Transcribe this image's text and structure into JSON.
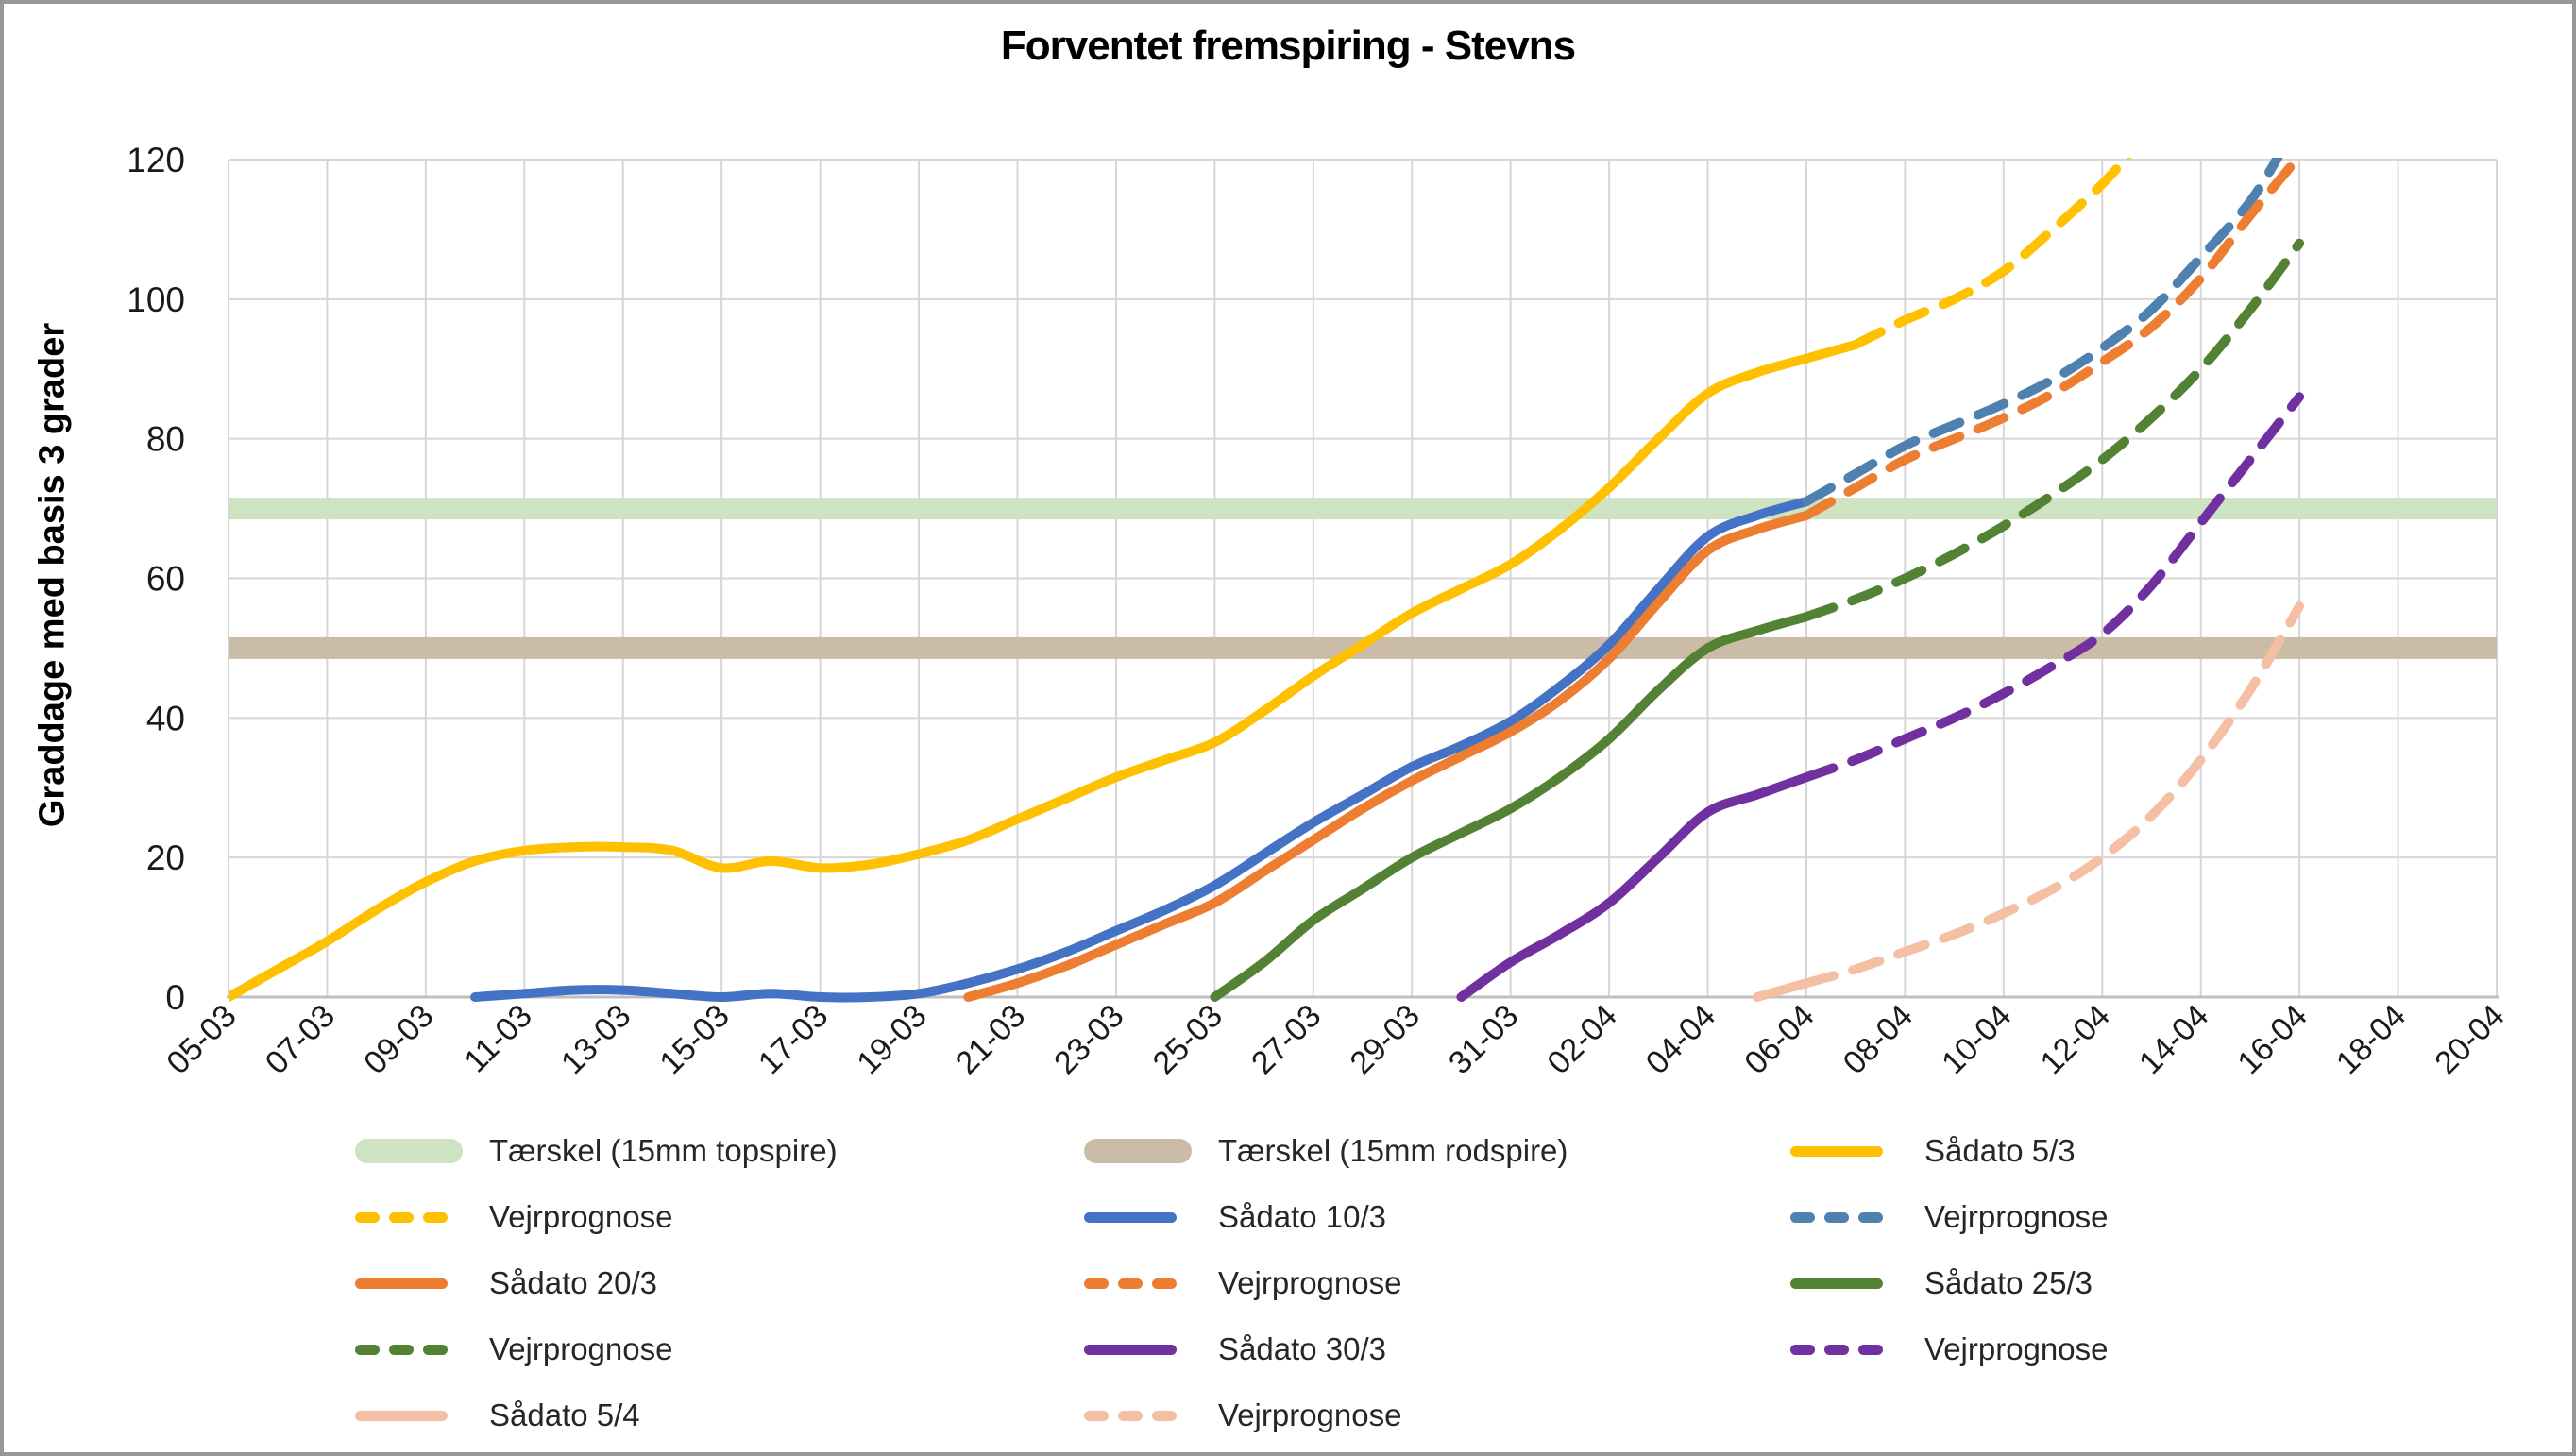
{
  "title": "Forventet fremspiring - Stevns",
  "chart_data": {
    "type": "line",
    "title": "Forventet fremspiring - Stevns",
    "xlabel": "",
    "ylabel": "Graddage med basis 3 grader",
    "ylim": [
      0,
      120
    ],
    "yticks": [
      0,
      20,
      40,
      60,
      80,
      100,
      120
    ],
    "grid": true,
    "legend_position": "bottom",
    "x_total_days": 46,
    "days_per_tick": 2,
    "x_note": "day 0 = 05-03, one vertical gridline per 2 days",
    "xtick_labels": [
      "05-03",
      "07-03",
      "09-03",
      "11-03",
      "13-03",
      "15-03",
      "17-03",
      "19-03",
      "21-03",
      "23-03",
      "25-03",
      "27-03",
      "29-03",
      "31-03",
      "02-04",
      "04-04",
      "06-04",
      "08-04",
      "10-04",
      "12-04",
      "14-04",
      "16-04",
      "18-04",
      "20-04"
    ],
    "thresholds": [
      {
        "name": "Tærskel (15mm topspire)",
        "value": 70,
        "color": "#CEE3C1"
      },
      {
        "name": "Tærskel (15mm rodspire)",
        "value": 50,
        "color": "#CBBCA7"
      }
    ],
    "series": [
      {
        "name": "Sådato 5/3",
        "group": "5/3",
        "style": "solid",
        "color": "#FFC000",
        "points": [
          [
            0,
            0
          ],
          [
            1,
            4
          ],
          [
            2,
            8
          ],
          [
            3,
            12.5
          ],
          [
            4,
            16.5
          ],
          [
            5,
            19.5
          ],
          [
            6,
            21
          ],
          [
            7,
            21.5
          ],
          [
            8,
            21.5
          ],
          [
            9,
            21
          ],
          [
            10,
            18.5
          ],
          [
            11,
            19.5
          ],
          [
            12,
            18.5
          ],
          [
            13,
            19
          ],
          [
            14,
            20.5
          ],
          [
            15,
            22.5
          ],
          [
            16,
            25.5
          ],
          [
            17,
            28.5
          ],
          [
            18,
            31.5
          ],
          [
            19,
            34
          ],
          [
            20,
            36.5
          ],
          [
            21,
            41
          ],
          [
            22,
            46
          ],
          [
            23,
            50.5
          ],
          [
            24,
            55
          ],
          [
            25,
            58.5
          ],
          [
            26,
            62
          ],
          [
            27,
            67
          ],
          [
            28,
            73
          ],
          [
            29,
            80
          ],
          [
            30,
            86.5
          ],
          [
            31,
            89.5
          ],
          [
            32,
            91.5
          ],
          [
            33,
            93.5
          ]
        ]
      },
      {
        "name": "Vejrprognose",
        "group": "5/3",
        "style": "dashed",
        "color": "#FFC000",
        "points": [
          [
            33,
            93.5
          ],
          [
            34,
            97
          ],
          [
            35,
            100
          ],
          [
            36,
            104
          ],
          [
            37,
            110
          ],
          [
            38,
            116.5
          ],
          [
            38.7,
            122
          ]
        ]
      },
      {
        "name": "Sådato 10/3",
        "group": "10/3",
        "style": "solid",
        "color": "#4472C4",
        "points": [
          [
            5,
            0
          ],
          [
            6,
            0.5
          ],
          [
            7,
            1
          ],
          [
            8,
            1
          ],
          [
            9,
            0.5
          ],
          [
            10,
            0
          ],
          [
            11,
            0.5
          ],
          [
            12,
            0
          ],
          [
            13,
            0
          ],
          [
            14,
            0.5
          ],
          [
            15,
            2
          ],
          [
            16,
            4
          ],
          [
            17,
            6.5
          ],
          [
            18,
            9.5
          ],
          [
            19,
            12.5
          ],
          [
            20,
            16
          ],
          [
            21,
            20.5
          ],
          [
            22,
            25
          ],
          [
            23,
            29
          ],
          [
            24,
            33
          ],
          [
            25,
            36
          ],
          [
            26,
            39.5
          ],
          [
            27,
            44.5
          ],
          [
            28,
            50.5
          ],
          [
            29,
            58.5
          ],
          [
            30,
            66
          ],
          [
            31,
            69
          ],
          [
            32,
            71
          ]
        ]
      },
      {
        "name": "Vejrprognose",
        "group": "10/3",
        "style": "dashed",
        "color": "#4F81B0",
        "points": [
          [
            32,
            71
          ],
          [
            33,
            75
          ],
          [
            34,
            79
          ],
          [
            35,
            82
          ],
          [
            36,
            85
          ],
          [
            37,
            88.5
          ],
          [
            38,
            93
          ],
          [
            39,
            98.5
          ],
          [
            40,
            106
          ],
          [
            41,
            114
          ],
          [
            41.7,
            122
          ]
        ]
      },
      {
        "name": "Sådato 20/3",
        "group": "20/3",
        "style": "solid",
        "color": "#ED7D31",
        "points": [
          [
            15,
            0
          ],
          [
            16,
            2
          ],
          [
            17,
            4.5
          ],
          [
            18,
            7.5
          ],
          [
            19,
            10.5
          ],
          [
            20,
            13.5
          ],
          [
            21,
            18
          ],
          [
            22,
            22.5
          ],
          [
            23,
            27
          ],
          [
            24,
            31
          ],
          [
            25,
            34.5
          ],
          [
            26,
            38
          ],
          [
            27,
            42.5
          ],
          [
            28,
            48.5
          ],
          [
            29,
            56.5
          ],
          [
            30,
            64
          ],
          [
            31,
            67
          ],
          [
            32,
            69
          ]
        ]
      },
      {
        "name": "Vejrprognose",
        "group": "20/3",
        "style": "dashed",
        "color": "#ED7D31",
        "points": [
          [
            32,
            69
          ],
          [
            33,
            73
          ],
          [
            34,
            77
          ],
          [
            35,
            80
          ],
          [
            36,
            83
          ],
          [
            37,
            86.5
          ],
          [
            38,
            91
          ],
          [
            39,
            96
          ],
          [
            40,
            103
          ],
          [
            41,
            112
          ],
          [
            42,
            120.5
          ]
        ]
      },
      {
        "name": "Sådato 25/3",
        "group": "25/3",
        "style": "solid",
        "color": "#548235",
        "points": [
          [
            20,
            0
          ],
          [
            21,
            5
          ],
          [
            22,
            11
          ],
          [
            23,
            15.5
          ],
          [
            24,
            20
          ],
          [
            25,
            23.5
          ],
          [
            26,
            27
          ],
          [
            27,
            31.5
          ],
          [
            28,
            37
          ],
          [
            29,
            44
          ],
          [
            30,
            50
          ],
          [
            31,
            52.5
          ],
          [
            32,
            54.5
          ]
        ]
      },
      {
        "name": "Vejrprognose",
        "group": "25/3",
        "style": "dashed",
        "color": "#548235",
        "points": [
          [
            32,
            54.5
          ],
          [
            33,
            57
          ],
          [
            34,
            60
          ],
          [
            35,
            63.5
          ],
          [
            36,
            67.5
          ],
          [
            37,
            72
          ],
          [
            38,
            77
          ],
          [
            39,
            83
          ],
          [
            40,
            90
          ],
          [
            41,
            98.5
          ],
          [
            42,
            108
          ]
        ]
      },
      {
        "name": "Sådato 30/3",
        "group": "30/3",
        "style": "solid",
        "color": "#7030A0",
        "points": [
          [
            25,
            0
          ],
          [
            26,
            5
          ],
          [
            27,
            9
          ],
          [
            28,
            13.5
          ],
          [
            29,
            20
          ],
          [
            30,
            26.5
          ],
          [
            31,
            29
          ],
          [
            32,
            31.5
          ]
        ]
      },
      {
        "name": "Vejrprognose",
        "group": "30/3",
        "style": "dashed",
        "color": "#7030A0",
        "points": [
          [
            32,
            31.5
          ],
          [
            33,
            34
          ],
          [
            34,
            37
          ],
          [
            35,
            40
          ],
          [
            36,
            43.5
          ],
          [
            37,
            47.5
          ],
          [
            38,
            52
          ],
          [
            39,
            59
          ],
          [
            40,
            68
          ],
          [
            41,
            77
          ],
          [
            42,
            86
          ]
        ]
      },
      {
        "name": "Sådato 5/4",
        "group": "5/4",
        "style": "solid",
        "color": "#F4BFA3",
        "points": [
          [
            31,
            0
          ],
          [
            32,
            2
          ]
        ]
      },
      {
        "name": "Vejrprognose",
        "group": "5/4",
        "style": "dashed",
        "color": "#F4BFA3",
        "points": [
          [
            32,
            2
          ],
          [
            33,
            4
          ],
          [
            34,
            6.5
          ],
          [
            35,
            9
          ],
          [
            36,
            12
          ],
          [
            37,
            15.5
          ],
          [
            38,
            20
          ],
          [
            39,
            26
          ],
          [
            40,
            34
          ],
          [
            41,
            44
          ],
          [
            42,
            56
          ]
        ]
      }
    ]
  },
  "legend": {
    "items": [
      {
        "label": "Tærskel (15mm topspire)",
        "swatch": "band",
        "color": "#CEE3C1"
      },
      {
        "label": "Tærskel (15mm rodspire)",
        "swatch": "band",
        "color": "#CBBCA7"
      },
      {
        "label": "Sådato 5/3",
        "swatch": "solid",
        "color": "#FFC000"
      },
      {
        "label": "Vejrprognose",
        "swatch": "dashed",
        "color": "#FFC000"
      },
      {
        "label": "Sådato 10/3",
        "swatch": "solid",
        "color": "#4472C4"
      },
      {
        "label": "Vejrprognose",
        "swatch": "dashed",
        "color": "#4F81B0"
      },
      {
        "label": "Sådato 20/3",
        "swatch": "solid",
        "color": "#ED7D31"
      },
      {
        "label": "Vejrprognose",
        "swatch": "dashed",
        "color": "#ED7D31"
      },
      {
        "label": "Sådato 25/3",
        "swatch": "solid",
        "color": "#548235"
      },
      {
        "label": "Vejrprognose",
        "swatch": "dashed",
        "color": "#548235"
      },
      {
        "label": "Sådato 30/3",
        "swatch": "solid",
        "color": "#7030A0"
      },
      {
        "label": "Vejrprognose",
        "swatch": "dashed",
        "color": "#7030A0"
      },
      {
        "label": "Sådato 5/4",
        "swatch": "solid",
        "color": "#F4BFA3"
      },
      {
        "label": "Vejrprognose",
        "swatch": "dashed",
        "color": "#F4BFA3"
      }
    ]
  },
  "style_colors": {
    "gridline": "#D6D6D6",
    "axis_line": "#BFBFBF",
    "tick_text": "#1A1A1A",
    "frame": "#979797"
  }
}
